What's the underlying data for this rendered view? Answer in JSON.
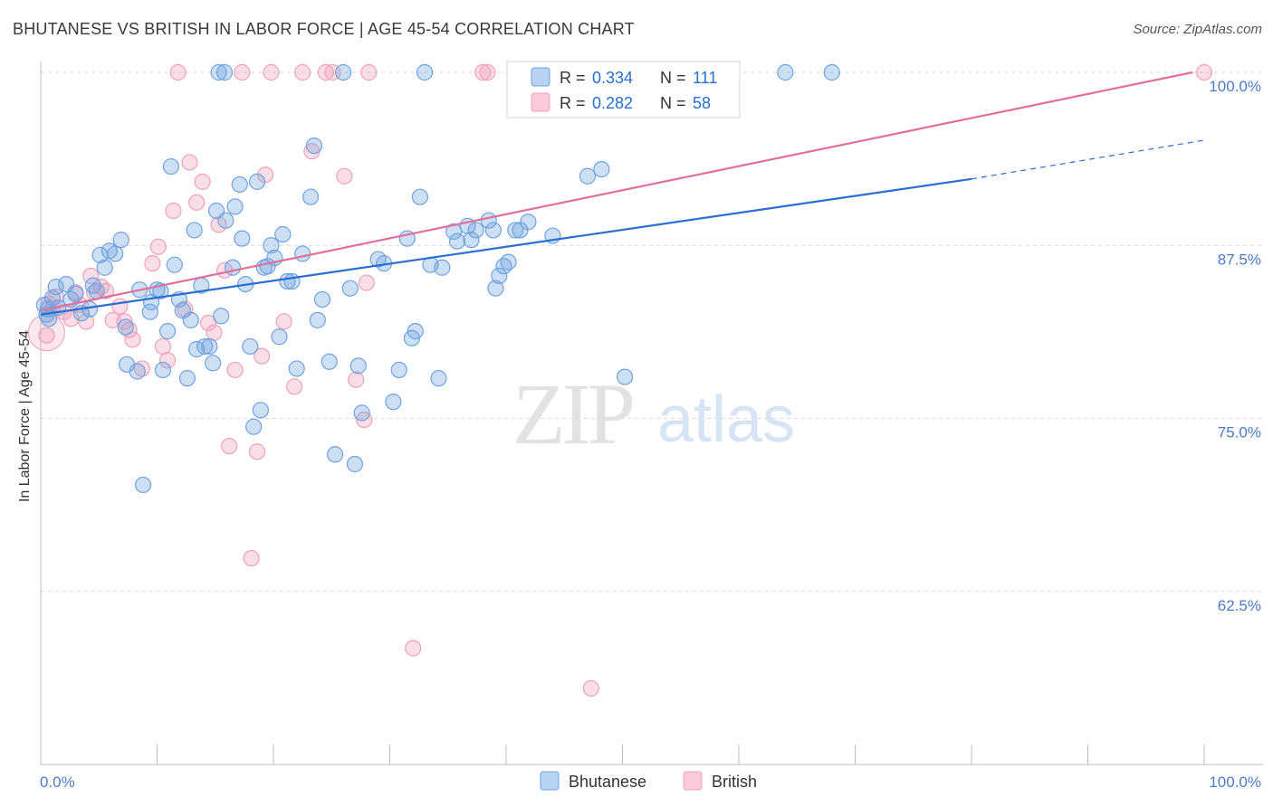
{
  "title": "BHUTANESE VS BRITISH IN LABOR FORCE | AGE 45-54 CORRELATION CHART",
  "source": "Source: ZipAtlas.com",
  "watermark": {
    "zip": "ZIP",
    "atlas": "atlas"
  },
  "colors": {
    "bhutanese": "#6fa3e0",
    "bhutanese_line": "#2a6fcf",
    "british": "#f0a0ba",
    "british_line": "#e0709a",
    "tick_label": "#4a7cc9",
    "grid": "#d8d8d8"
  },
  "chart_data": {
    "type": "scatter",
    "title": "BHUTANESE VS BRITISH IN LABOR FORCE | AGE 45-54 CORRELATION CHART",
    "xlabel": "",
    "ylabel": "In Labor Force | Age 45-54",
    "xlim": [
      0,
      100
    ],
    "ylim": [
      50,
      101.5
    ],
    "x_tick_labels": [
      "0.0%",
      "100.0%"
    ],
    "y_ticks": [
      62.5,
      75.0,
      87.5,
      100.0
    ],
    "y_tick_labels": [
      "62.5%",
      "75.0%",
      "87.5%",
      "100.0%"
    ],
    "grid": true,
    "legend_placement": "top-center",
    "legend": [
      {
        "series": "Bhutanese",
        "r_label": "R =",
        "r_value": "0.334",
        "n_label": "N =",
        "n_value": "111"
      },
      {
        "series": "British",
        "r_label": "R =",
        "r_value": "0.282",
        "n_label": "N =",
        "n_value": "58"
      }
    ],
    "bottom_legend": [
      "Bhutanese",
      "British"
    ],
    "series": [
      {
        "name": "Bhutanese",
        "trend": {
          "x0": 0,
          "y0": 82.5,
          "x1": 80,
          "y1": 92.3,
          "dash_to_x": 100,
          "dash_to_y": 95.1
        },
        "points": [
          [
            0.5,
            82.5
          ],
          [
            0.6,
            82.9
          ],
          [
            0.7,
            82.2
          ],
          [
            1.0,
            83.7
          ],
          [
            1.3,
            84.5
          ],
          [
            1.5,
            83.0
          ],
          [
            2.2,
            84.7
          ],
          [
            2.6,
            83.6
          ],
          [
            3.0,
            84.0
          ],
          [
            3.5,
            82.6
          ],
          [
            4.5,
            84.6
          ],
          [
            4.8,
            84.2
          ],
          [
            5.1,
            86.8
          ],
          [
            5.5,
            85.9
          ],
          [
            5.9,
            87.1
          ],
          [
            6.4,
            86.9
          ],
          [
            6.9,
            87.9
          ],
          [
            7.3,
            81.6
          ],
          [
            7.4,
            78.9
          ],
          [
            8.3,
            78.4
          ],
          [
            8.5,
            84.3
          ],
          [
            8.8,
            70.2
          ],
          [
            9.4,
            82.7
          ],
          [
            9.5,
            83.4
          ],
          [
            10.0,
            84.3
          ],
          [
            10.3,
            84.2
          ],
          [
            10.5,
            78.5
          ],
          [
            10.9,
            81.3
          ],
          [
            11.2,
            93.2
          ],
          [
            11.5,
            86.1
          ],
          [
            11.9,
            83.6
          ],
          [
            12.2,
            82.8
          ],
          [
            12.6,
            77.9
          ],
          [
            12.9,
            82.1
          ],
          [
            13.2,
            88.6
          ],
          [
            13.4,
            80.0
          ],
          [
            13.8,
            84.6
          ],
          [
            14.1,
            80.2
          ],
          [
            14.5,
            80.2
          ],
          [
            14.8,
            79.0
          ],
          [
            15.1,
            90.0
          ],
          [
            15.5,
            82.4
          ],
          [
            15.9,
            89.3
          ],
          [
            16.5,
            85.9
          ],
          [
            16.7,
            90.3
          ],
          [
            17.1,
            91.9
          ],
          [
            17.3,
            88.0
          ],
          [
            17.6,
            84.7
          ],
          [
            18.0,
            80.2
          ],
          [
            18.3,
            74.4
          ],
          [
            18.6,
            92.1
          ],
          [
            18.9,
            75.6
          ],
          [
            19.2,
            85.9
          ],
          [
            19.5,
            86.0
          ],
          [
            19.8,
            87.5
          ],
          [
            20.1,
            86.6
          ],
          [
            20.5,
            80.9
          ],
          [
            20.8,
            88.3
          ],
          [
            21.2,
            84.9
          ],
          [
            21.6,
            84.9
          ],
          [
            22.0,
            78.6
          ],
          [
            22.5,
            86.9
          ],
          [
            23.2,
            91.0
          ],
          [
            23.5,
            94.7
          ],
          [
            23.8,
            82.1
          ],
          [
            24.2,
            83.6
          ],
          [
            24.8,
            79.1
          ],
          [
            25.3,
            72.4
          ],
          [
            26.0,
            100.0
          ],
          [
            26.6,
            84.4
          ],
          [
            27.0,
            71.7
          ],
          [
            27.3,
            78.8
          ],
          [
            27.6,
            75.4
          ],
          [
            29.0,
            86.5
          ],
          [
            29.5,
            86.2
          ],
          [
            30.3,
            76.2
          ],
          [
            30.8,
            78.5
          ],
          [
            31.5,
            88.0
          ],
          [
            31.9,
            80.8
          ],
          [
            32.2,
            81.3
          ],
          [
            32.6,
            91.0
          ],
          [
            33.0,
            100.0
          ],
          [
            33.5,
            86.1
          ],
          [
            34.2,
            77.9
          ],
          [
            34.5,
            85.9
          ],
          [
            35.5,
            88.5
          ],
          [
            35.8,
            87.8
          ],
          [
            36.7,
            88.9
          ],
          [
            37.0,
            87.9
          ],
          [
            37.4,
            88.6
          ],
          [
            38.5,
            89.3
          ],
          [
            38.9,
            88.6
          ],
          [
            39.1,
            84.4
          ],
          [
            39.4,
            85.3
          ],
          [
            39.8,
            86.0
          ],
          [
            40.2,
            86.3
          ],
          [
            40.8,
            88.6
          ],
          [
            41.2,
            88.6
          ],
          [
            41.9,
            89.2
          ],
          [
            43.0,
            100.0
          ],
          [
            44.0,
            88.2
          ],
          [
            45.0,
            100.0
          ],
          [
            47.0,
            92.5
          ],
          [
            48.2,
            93.0
          ],
          [
            50.2,
            78.0
          ],
          [
            64.0,
            100.0
          ],
          [
            68.0,
            100.0
          ],
          [
            15.3,
            100.0
          ],
          [
            15.8,
            100.0
          ],
          [
            0.3,
            83.2
          ],
          [
            4.2,
            82.9
          ]
        ]
      },
      {
        "name": "British",
        "trend": {
          "x0": 0,
          "y0": 82.8,
          "x1": 99,
          "y1": 100.0
        },
        "points": [
          [
            0.5,
            81.0
          ],
          [
            0.7,
            83.3
          ],
          [
            1.0,
            82.9
          ],
          [
            1.3,
            83.8
          ],
          [
            2.0,
            82.7
          ],
          [
            2.6,
            82.2
          ],
          [
            3.0,
            84.1
          ],
          [
            3.4,
            83.2
          ],
          [
            3.9,
            82.0
          ],
          [
            4.3,
            85.3
          ],
          [
            4.6,
            84.1
          ],
          [
            5.2,
            84.5
          ],
          [
            5.6,
            84.2
          ],
          [
            6.2,
            82.1
          ],
          [
            6.8,
            83.1
          ],
          [
            7.2,
            82.0
          ],
          [
            7.6,
            81.4
          ],
          [
            7.9,
            80.7
          ],
          [
            8.7,
            78.6
          ],
          [
            9.6,
            86.2
          ],
          [
            10.1,
            87.4
          ],
          [
            10.5,
            80.2
          ],
          [
            10.9,
            79.2
          ],
          [
            11.4,
            90.0
          ],
          [
            11.8,
            100.0
          ],
          [
            12.4,
            82.9
          ],
          [
            12.8,
            93.5
          ],
          [
            13.4,
            90.6
          ],
          [
            13.9,
            92.1
          ],
          [
            14.4,
            81.9
          ],
          [
            14.9,
            81.2
          ],
          [
            15.3,
            89.0
          ],
          [
            15.8,
            85.7
          ],
          [
            16.2,
            73.0
          ],
          [
            16.7,
            78.5
          ],
          [
            17.3,
            100.0
          ],
          [
            18.1,
            64.9
          ],
          [
            18.6,
            72.6
          ],
          [
            19.0,
            79.5
          ],
          [
            19.3,
            92.6
          ],
          [
            19.8,
            100.0
          ],
          [
            20.9,
            82.0
          ],
          [
            21.8,
            77.3
          ],
          [
            22.5,
            100.0
          ],
          [
            23.3,
            94.3
          ],
          [
            24.5,
            100.0
          ],
          [
            25.1,
            100.0
          ],
          [
            26.1,
            92.5
          ],
          [
            27.1,
            77.8
          ],
          [
            27.8,
            74.9
          ],
          [
            28.2,
            100.0
          ],
          [
            32.0,
            58.4
          ],
          [
            38.0,
            100.0
          ],
          [
            38.4,
            100.0
          ],
          [
            47.3,
            55.5
          ],
          [
            52.0,
            100.0
          ],
          [
            100.0,
            100.0
          ],
          [
            28.0,
            84.8
          ]
        ]
      }
    ]
  }
}
